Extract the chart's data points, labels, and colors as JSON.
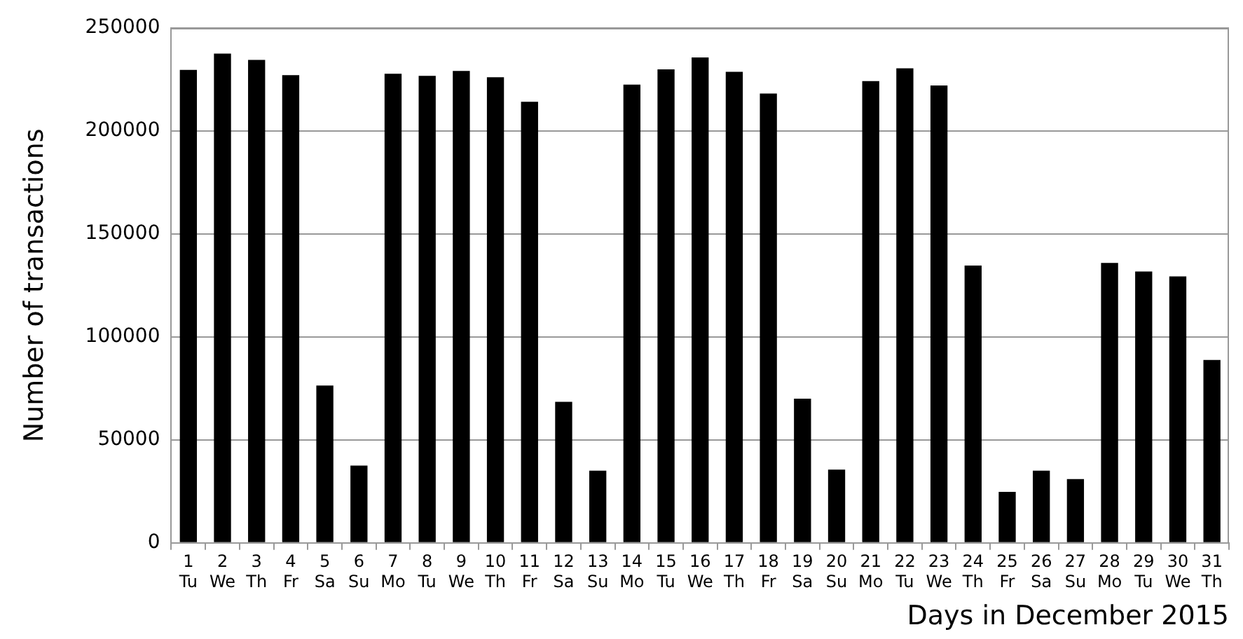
{
  "chart_data": {
    "type": "bar",
    "xlabel": "Days in December 2015",
    "ylabel": "Number of transactions",
    "categories": [
      "1\nTu",
      "2\nWe",
      "3\nTh",
      "4\nFr",
      "5\nSa",
      "6\nSu",
      "7\nMo",
      "8\nTu",
      "9\nWe",
      "10\nTh",
      "11\nFr",
      "12\nSa",
      "13\nSu",
      "14\nMo",
      "15\nTu",
      "16\nWe",
      "17\nTh",
      "18\nFr",
      "19\nSa",
      "20\nSu",
      "21\nMo",
      "22\nTu",
      "23\nWe",
      "24\nTh",
      "25\nFr",
      "26\nSa",
      "27\nSu",
      "28\nMo",
      "29\nTu",
      "30\nWe",
      "31\nTh"
    ],
    "values": [
      229700,
      237600,
      234500,
      227100,
      76400,
      37500,
      227800,
      226800,
      229200,
      226100,
      214200,
      68500,
      35100,
      222500,
      229900,
      235700,
      228700,
      218200,
      70000,
      35600,
      224200,
      230400,
      222100,
      134700,
      24800,
      35100,
      31000,
      135900,
      131800,
      129400,
      88800
    ],
    "color": "#000000",
    "ylim": [
      0,
      250000
    ],
    "yticks": [
      0,
      50000,
      100000,
      150000,
      200000,
      250000
    ],
    "grid": "y",
    "legend": false
  }
}
